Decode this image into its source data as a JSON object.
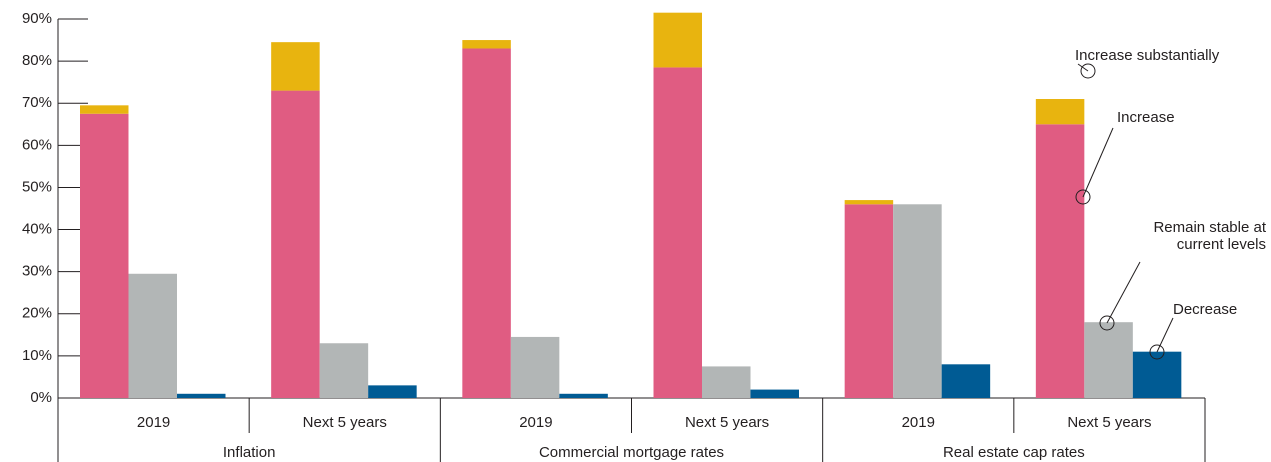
{
  "chart_data": {
    "type": "bar",
    "categories": [
      "2019",
      "Next 5 years",
      "2019",
      "Next 5 years",
      "2019",
      "Next 5 years"
    ],
    "groups": [
      "Inflation",
      "Commercial mortgage rates",
      "Real estate cap rates"
    ],
    "series": [
      {
        "name": "Increase",
        "color": "#e05c82",
        "values": [
          67.5,
          73,
          83,
          78.5,
          46,
          65
        ]
      },
      {
        "name": "Increase substantially",
        "color": "#e8b40f",
        "stacked_on": "Increase",
        "values": [
          2,
          11.5,
          2,
          13,
          1,
          6
        ]
      },
      {
        "name": "Remain stable at current levels",
        "color": "#b2b6b6",
        "values": [
          29.5,
          13,
          14.5,
          7.5,
          46,
          18
        ]
      },
      {
        "name": "Decrease",
        "color": "#005b94",
        "values": [
          1,
          3,
          1,
          2,
          8,
          11
        ]
      }
    ],
    "ylim": [
      0,
      90
    ],
    "yticks": [
      {
        "value": 0,
        "label": "0%"
      },
      {
        "value": 10,
        "label": "10%"
      },
      {
        "value": 20,
        "label": "20%"
      },
      {
        "value": 30,
        "label": "30%"
      },
      {
        "value": 40,
        "label": "40%"
      },
      {
        "value": 50,
        "label": "50%"
      },
      {
        "value": 60,
        "label": "60%"
      },
      {
        "value": 70,
        "label": "70%"
      },
      {
        "value": 80,
        "label": "80%"
      },
      {
        "value": 90,
        "label": "90%"
      }
    ]
  }
}
